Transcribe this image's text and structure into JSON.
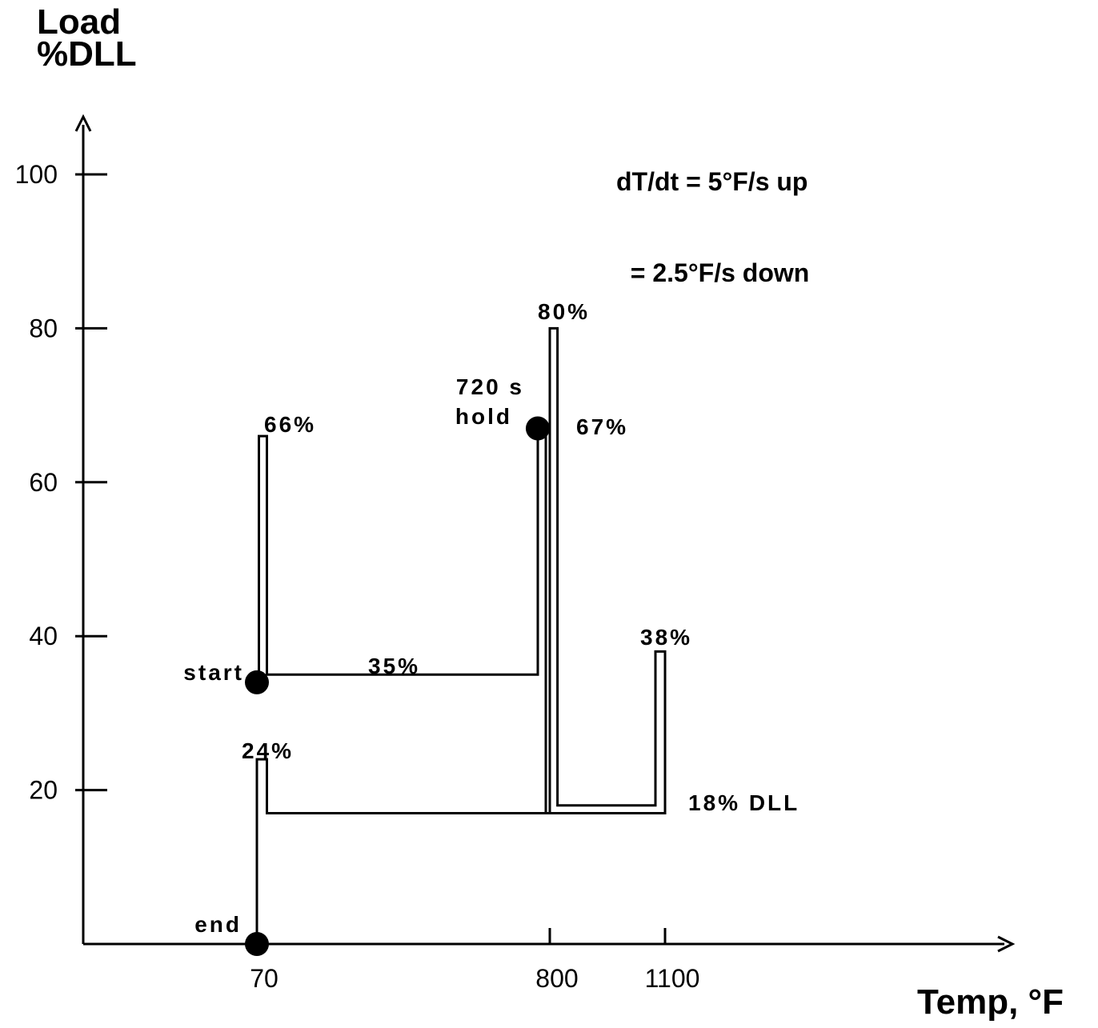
{
  "chart_data": {
    "type": "line",
    "title": "",
    "xlabel": "Temp, °F",
    "ylabel_line1": "Load",
    "ylabel_line2": "%DLL",
    "note_line1": "dT/dt = 5°F/s up",
    "note_line2": "  = 2.5°F/s down",
    "ylim": [
      0,
      100
    ],
    "yticks": [
      20,
      40,
      60,
      80,
      100
    ],
    "xticks": [
      {
        "label": "70",
        "value": 70
      },
      {
        "label": "800",
        "value": 800
      },
      {
        "label": "1100",
        "value": 1100
      }
    ],
    "grid": false,
    "series": [
      {
        "x": [
          70,
          75,
          75,
          95,
          95,
          770,
          770,
          790,
          790,
          1100,
          1100,
          1075,
          1075,
          820,
          820,
          800,
          800,
          95,
          95,
          70,
          70
        ],
        "y": [
          34,
          34,
          66,
          66,
          35,
          35,
          67,
          67,
          17,
          17,
          38,
          38,
          18,
          18,
          80,
          80,
          17,
          17,
          24,
          24,
          0
        ]
      }
    ],
    "points": [
      {
        "label": "start",
        "x": 70,
        "y": 34
      },
      {
        "label": "720 s hold",
        "x": 770,
        "y": 67
      },
      {
        "label": "end",
        "x": 70,
        "y": 0
      }
    ],
    "annotations": [
      {
        "text": "66%",
        "x": 85,
        "y": 66
      },
      {
        "text": "35%",
        "x": 380,
        "y": 35
      },
      {
        "text": "720 s",
        "x": 740,
        "y": 72
      },
      {
        "text": "hold",
        "x": 740,
        "y": 68
      },
      {
        "text": "80%",
        "x": 810,
        "y": 81
      },
      {
        "text": "67%",
        "x": 860,
        "y": 67
      },
      {
        "text": "38%",
        "x": 1090,
        "y": 39
      },
      {
        "text": "24%",
        "x": 80,
        "y": 25
      },
      {
        "text": "18%  DLL",
        "x": 1160,
        "y": 18
      },
      {
        "text": "start",
        "x": 70,
        "y": 34
      },
      {
        "text": "end",
        "x": 70,
        "y": 0
      }
    ]
  }
}
